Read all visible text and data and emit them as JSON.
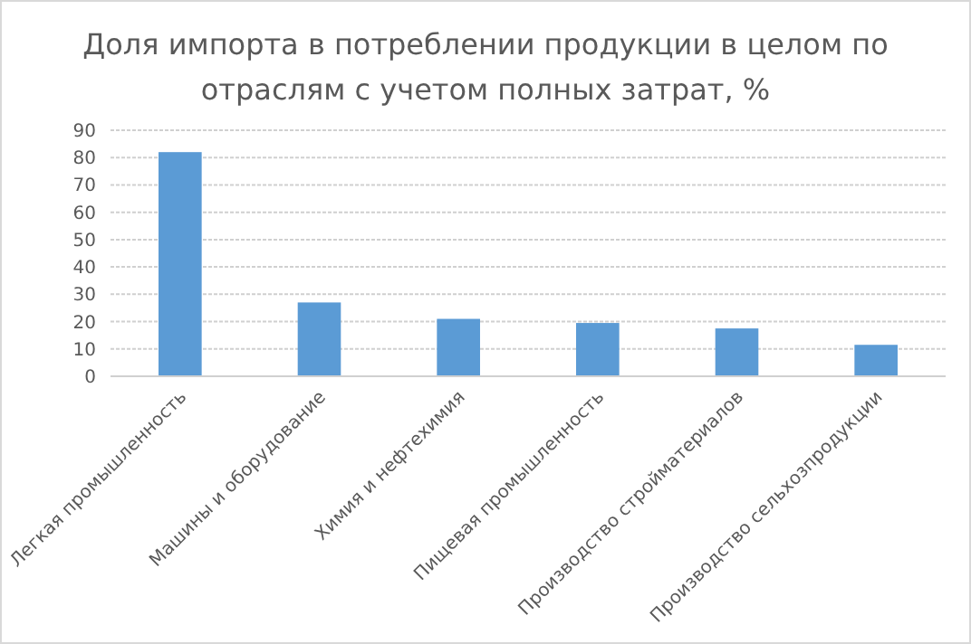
{
  "chart_data": {
    "type": "bar",
    "title": "Доля импорта в потреблении продукции в целом по отраслям с учетом полных затрат, %",
    "categories": [
      "Легкая промышленность",
      "Машины и оборудование",
      "Химия и нефтехимия",
      "Пищевая промышленность",
      "Производство стройматериалов",
      "Производство сельхозпродукции"
    ],
    "values": [
      82,
      27,
      21,
      19.5,
      17.5,
      11.5
    ],
    "color": "#5b9bd5",
    "ylim": [
      0,
      90
    ],
    "yticks": [
      0,
      10,
      20,
      30,
      40,
      50,
      60,
      70,
      80,
      90
    ],
    "grid": "y"
  }
}
